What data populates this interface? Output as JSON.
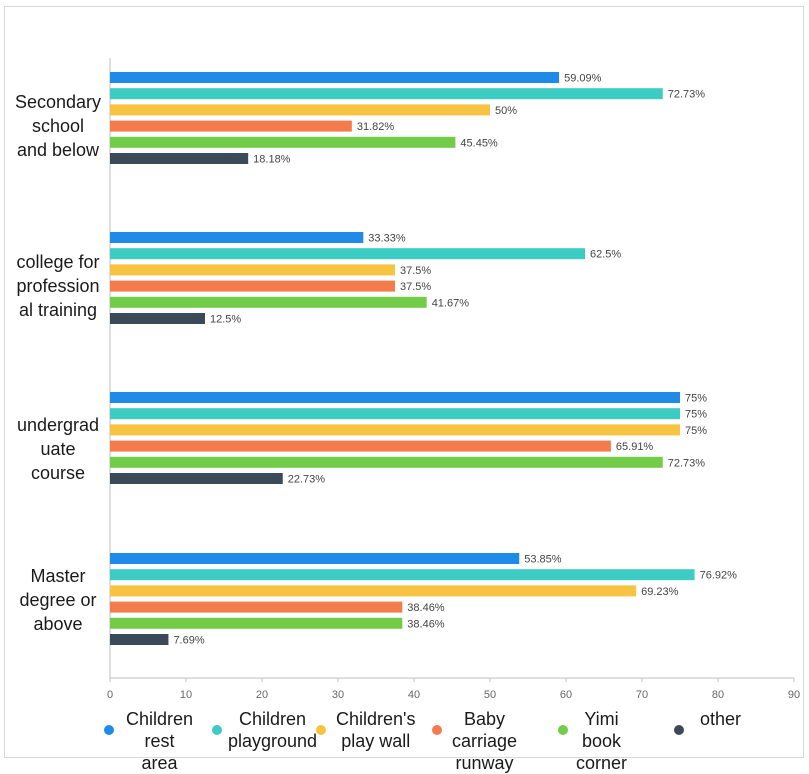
{
  "chart_data": {
    "type": "bar",
    "orientation": "horizontal",
    "categories": [
      "Secondary school and below",
      "college for professional training",
      "undergraduate course",
      "Master degree or above"
    ],
    "category_lines": [
      [
        "Secondary",
        "school",
        "and below"
      ],
      [
        "college for",
        "profession",
        "al training"
      ],
      [
        "undergrad",
        "uate",
        "course"
      ],
      [
        "Master",
        "degree or",
        "above"
      ]
    ],
    "series": [
      {
        "name": "Children rest area",
        "legend_lines": "Children\nrest area",
        "color": "#1E8BE8",
        "values": [
          59.09,
          33.33,
          75,
          53.85
        ],
        "labels": [
          "59.09%",
          "33.33%",
          "75%",
          "53.85%"
        ]
      },
      {
        "name": "Children playground",
        "legend_lines": "Children\nplayground",
        "color": "#3CCCC4",
        "values": [
          72.73,
          62.5,
          75,
          76.92
        ],
        "labels": [
          "72.73%",
          "62.5%",
          "75%",
          "76.92%"
        ]
      },
      {
        "name": "Children's play wall",
        "legend_lines": "Children's\nplay wall",
        "color": "#F7C340",
        "values": [
          50,
          37.5,
          75,
          69.23
        ],
        "labels": [
          "50%",
          "37.5%",
          "75%",
          "69.23%"
        ]
      },
      {
        "name": "Baby carriage runway",
        "legend_lines": "Baby\ncarriage runway",
        "color": "#F47B4B",
        "values": [
          31.82,
          37.5,
          65.91,
          38.46
        ],
        "labels": [
          "31.82%",
          "37.5%",
          "65.91%",
          "38.46%"
        ]
      },
      {
        "name": "Yimi book corner",
        "legend_lines": "Yimi book\ncorner",
        "color": "#72CC47",
        "values": [
          45.45,
          41.67,
          72.73,
          38.46
        ],
        "labels": [
          "45.45%",
          "41.67%",
          "72.73%",
          "38.46%"
        ]
      },
      {
        "name": "other",
        "legend_lines": "other",
        "color": "#3A4A58",
        "values": [
          18.18,
          12.5,
          22.73,
          7.69
        ],
        "labels": [
          "18.18%",
          "12.5%",
          "22.73%",
          "7.69%"
        ]
      }
    ],
    "x_ticks": [
      0,
      10,
      20,
      30,
      40,
      50,
      60,
      70,
      80,
      90
    ],
    "xlim": [
      0,
      90
    ],
    "grid": false,
    "legend_position": "bottom",
    "title": "",
    "xlabel": "",
    "ylabel": ""
  }
}
